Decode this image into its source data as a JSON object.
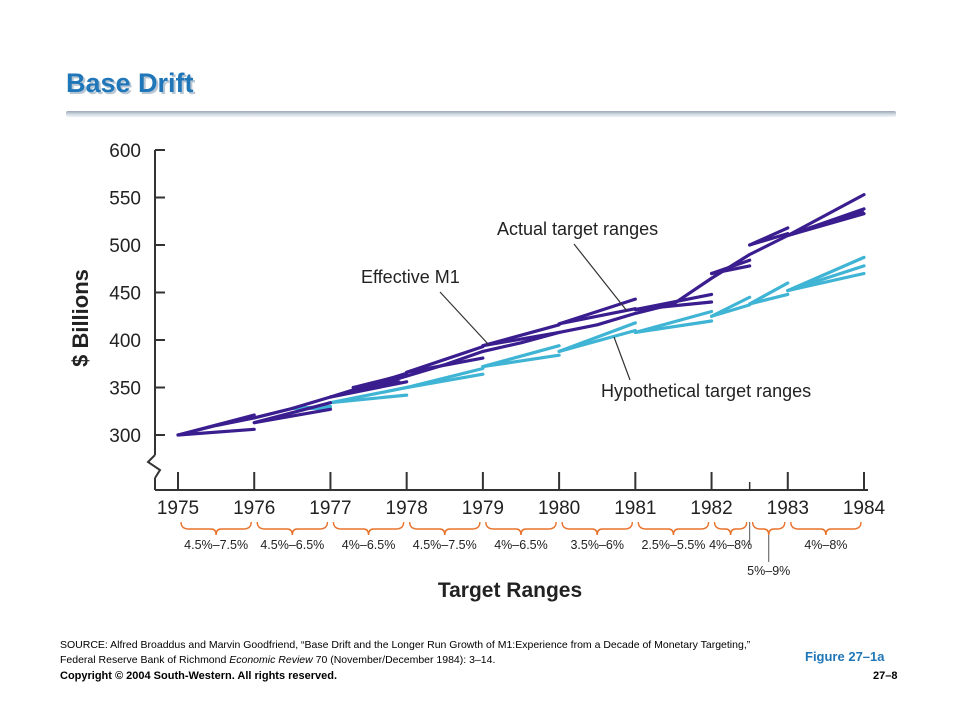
{
  "slide": {
    "title": "Base Drift",
    "figure_label": "Figure 27–1a",
    "copyright": "Copyright © 2004 South-Western. All rights reserved.",
    "page_number": "27–8",
    "source_prefix": "SOURCE: Alfred Broaddus and Marvin Goodfriend, “Base Drift and the Longer Run Growth of M1:Experience from a Decade of Monetary Targeting,” Federal Reserve Bank of Richmond ",
    "source_journal": "Economic Review",
    "source_suffix": " 70 (November/December 1984): 3–14."
  },
  "chart_data": {
    "type": "line",
    "title": "",
    "ylabel": "$ Billions",
    "xlabel": "Target Ranges",
    "ylim": [
      300,
      600
    ],
    "yticks": [
      600,
      550,
      500,
      450,
      400,
      350,
      300
    ],
    "xticks": [
      "1975",
      "1976",
      "1977",
      "1978",
      "1979",
      "1980",
      "1981",
      "1982",
      "1983",
      "1984"
    ],
    "colors": {
      "actual": "#3a1d8f",
      "hypothetical": "#3fb4d4"
    },
    "annotations": {
      "actual": "Actual target ranges",
      "effective": "Effective M1",
      "hypothetical": "Hypothetical target ranges"
    },
    "target_ranges": [
      {
        "label": "4.5%–7.5%",
        "from": 1975,
        "to": 1976
      },
      {
        "label": "4.5%–6.5%",
        "from": 1976,
        "to": 1977
      },
      {
        "label": "4%–6.5%",
        "from": 1977,
        "to": 1978
      },
      {
        "label": "4.5%–7.5%",
        "from": 1978,
        "to": 1979
      },
      {
        "label": "4%–6.5%",
        "from": 1979,
        "to": 1980
      },
      {
        "label": "3.5%–6%",
        "from": 1980,
        "to": 1981
      },
      {
        "label": "2.5%–5.5%",
        "from": 1981,
        "to": 1982
      },
      {
        "label": "4%–8%",
        "from": 1982,
        "to": 1982.5
      },
      {
        "label": "5%–9%",
        "from": 1982.5,
        "to": 1983,
        "below": true
      },
      {
        "label": "4%–8%",
        "from": 1983,
        "to": 1984
      }
    ],
    "series": [
      {
        "key": "effective",
        "points": [
          [
            1975,
            300
          ],
          [
            1975.5,
            310
          ],
          [
            1976,
            318
          ],
          [
            1976.5,
            328
          ],
          [
            1977,
            340
          ],
          [
            1977.5,
            350
          ],
          [
            1978,
            362
          ],
          [
            1978.5,
            374
          ],
          [
            1979,
            388
          ],
          [
            1979.5,
            397
          ],
          [
            1980,
            408
          ],
          [
            1980.5,
            416
          ],
          [
            1981,
            428
          ],
          [
            1981.5,
            438
          ],
          [
            1982,
            465
          ],
          [
            1982.5,
            490
          ],
          [
            1983,
            510
          ],
          [
            1983.5,
            522
          ],
          [
            1984,
            535
          ]
        ]
      }
    ],
    "fans": [
      {
        "series": "actual",
        "x0": 1975,
        "y0": 300,
        "x1": 1976,
        "highs": [
          321
        ],
        "lows": [
          306
        ]
      },
      {
        "series": "actual",
        "x0": 1976,
        "y0": 313,
        "x1": 1977,
        "highs": [
          334
        ],
        "lows": [
          327
        ]
      },
      {
        "series": "actual",
        "x0": 1977,
        "y0": 340,
        "x1": 1978,
        "highs": [
          365
        ],
        "lows": [
          356
        ]
      },
      {
        "series": "actual",
        "x0": 1977.3,
        "y0": 350,
        "x1": 1977.9,
        "highs": [
          362
        ],
        "lows": [
          356
        ]
      },
      {
        "series": "actual",
        "x0": 1978,
        "y0": 366,
        "x1": 1979,
        "highs": [
          393
        ],
        "lows": [
          381
        ]
      },
      {
        "series": "actual",
        "x0": 1979,
        "y0": 394,
        "x1": 1980,
        "highs": [
          416
        ],
        "lows": [
          408
        ]
      },
      {
        "series": "actual",
        "x0": 1980,
        "y0": 417,
        "x1": 1981,
        "highs": [
          443
        ],
        "lows": [
          433
        ]
      },
      {
        "series": "actual",
        "x0": 1981,
        "y0": 432,
        "x1": 1982,
        "highs": [
          448
        ],
        "lows": [
          440
        ]
      },
      {
        "series": "actual",
        "x0": 1982,
        "y0": 470,
        "x1": 1982.5,
        "highs": [
          484
        ],
        "lows": [
          478
        ]
      },
      {
        "series": "actual",
        "x0": 1982.5,
        "y0": 500,
        "x1": 1983,
        "highs": [
          518
        ],
        "lows": [
          512
        ]
      },
      {
        "series": "actual",
        "x0": 1983,
        "y0": 510,
        "x1": 1984,
        "highs": [
          553
        ],
        "lows": [
          538,
          533
        ]
      },
      {
        "series": "hypothetical",
        "x0": 1976.5,
        "y0": 328,
        "x1": 1977,
        "highs": [
          330
        ],
        "lows": [
          328
        ]
      },
      {
        "series": "hypothetical",
        "x0": 1977,
        "y0": 334,
        "x1": 1978,
        "highs": [
          350
        ],
        "lows": [
          342
        ]
      },
      {
        "series": "hypothetical",
        "x0": 1978,
        "y0": 350,
        "x1": 1979,
        "highs": [
          370
        ],
        "lows": [
          364
        ]
      },
      {
        "series": "hypothetical",
        "x0": 1979,
        "y0": 372,
        "x1": 1980,
        "highs": [
          394
        ],
        "lows": [
          384
        ]
      },
      {
        "series": "hypothetical",
        "x0": 1980,
        "y0": 388,
        "x1": 1981,
        "highs": [
          418
        ],
        "lows": [
          410
        ]
      },
      {
        "series": "hypothetical",
        "x0": 1981,
        "y0": 408,
        "x1": 1982,
        "highs": [
          430
        ],
        "lows": [
          420
        ]
      },
      {
        "series": "hypothetical",
        "x0": 1982,
        "y0": 425,
        "x1": 1982.5,
        "highs": [
          445
        ],
        "lows": [
          437
        ]
      },
      {
        "series": "hypothetical",
        "x0": 1982.5,
        "y0": 438,
        "x1": 1983,
        "highs": [
          460
        ],
        "lows": [
          448
        ]
      },
      {
        "series": "hypothetical",
        "x0": 1983,
        "y0": 452,
        "x1": 1984,
        "highs": [
          487
        ],
        "lows": [
          478,
          470
        ]
      }
    ]
  }
}
